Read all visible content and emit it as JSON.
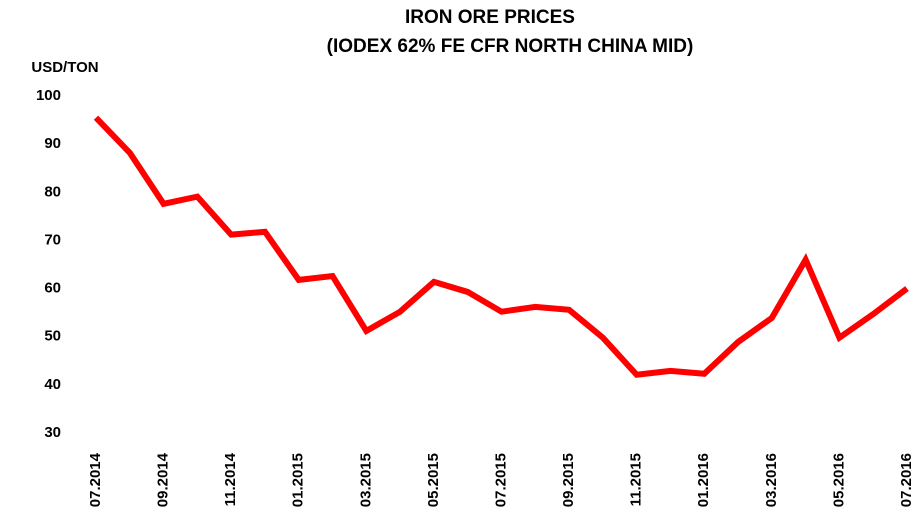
{
  "chart_data": {
    "type": "line",
    "title": "IRON ORE PRICES",
    "subtitle": "(IODEX 62% FE CFR NORTH CHINA MID)",
    "y_label": "USD/TON",
    "categories": [
      "07.2014",
      null,
      "09.2014",
      null,
      "11.2014",
      null,
      "01.2015",
      null,
      "03.2015",
      null,
      "05.2015",
      null,
      "07.2015",
      null,
      "09.2015",
      null,
      "11.2015",
      null,
      "01.2016",
      null,
      "03.2016",
      null,
      "05.2016",
      null,
      "07.2016"
    ],
    "series": [
      {
        "name": "Iodex 62% Fe",
        "color": "#ff0000",
        "values": [
          95.5,
          88.2,
          77.6,
          79.1,
          71.2,
          71.8,
          61.8,
          62.6,
          51.2,
          55.2,
          61.4,
          59.3,
          55.2,
          56.2,
          55.6,
          49.8,
          42.1,
          42.9,
          42.3,
          48.9,
          53.9,
          66.0,
          49.8,
          54.7,
          60.0
        ]
      }
    ],
    "ylim": [
      30,
      100
    ],
    "yticks": [
      30,
      40,
      50,
      60,
      70,
      80,
      90,
      100
    ],
    "grid": false
  }
}
